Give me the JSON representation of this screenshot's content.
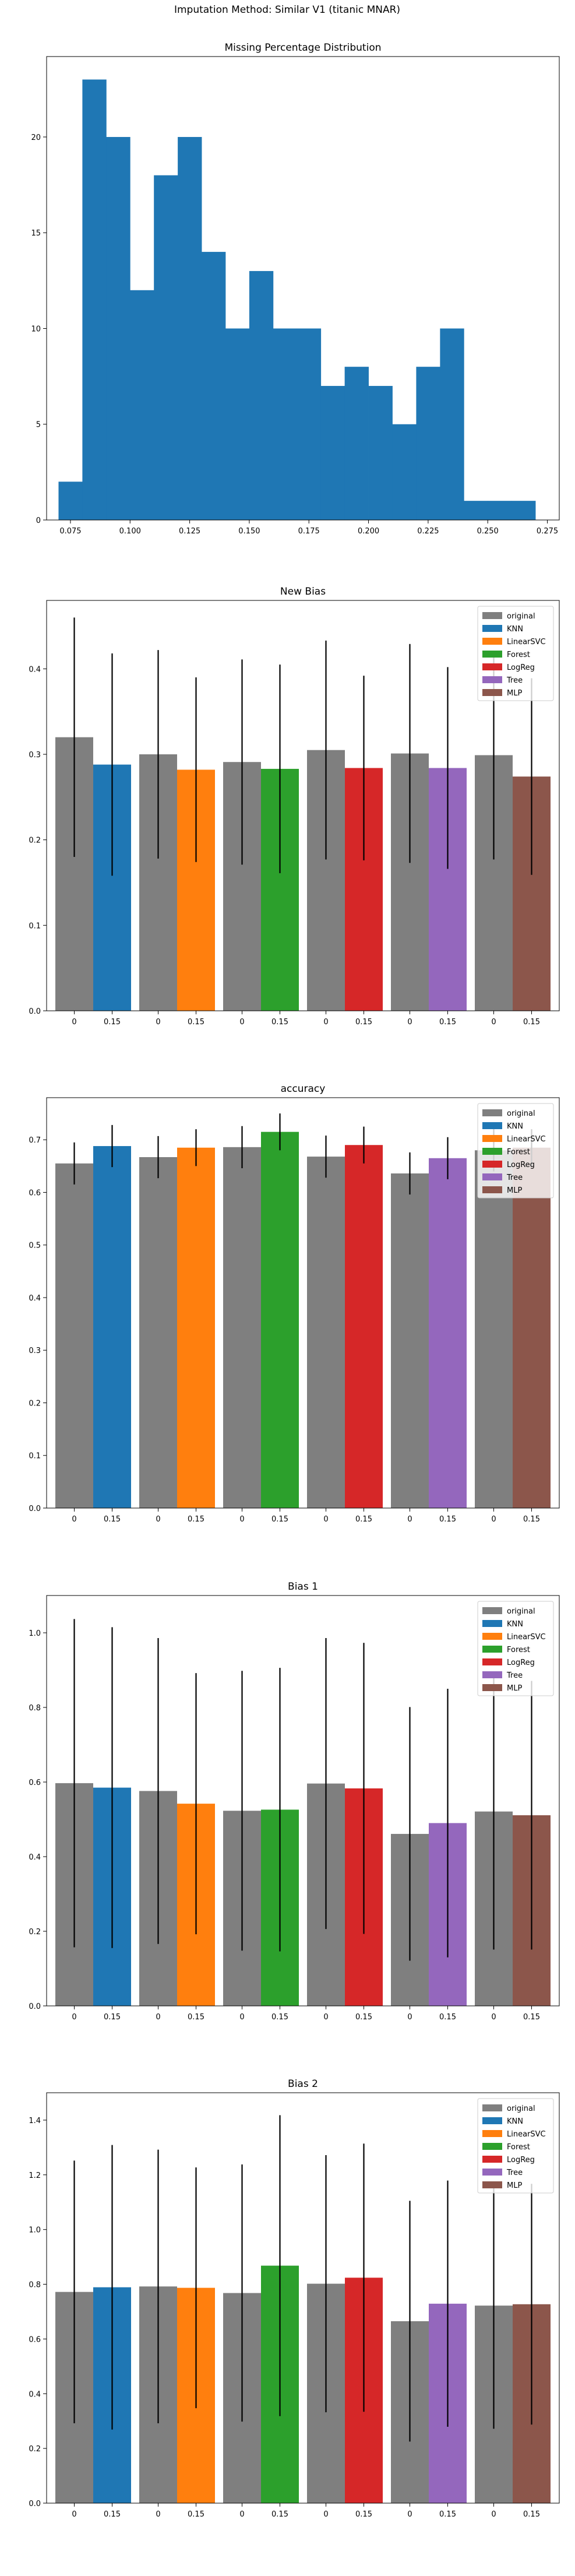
{
  "suptitle": "Imputation Method: Similar V1 (titanic MNAR)",
  "chart_data": [
    {
      "type": "bar",
      "subtype": "histogram",
      "title": "Missing Percentage Distribution",
      "color": "#1f77b4",
      "bin_edges": [
        0.07,
        0.08,
        0.09,
        0.1,
        0.11,
        0.12,
        0.13,
        0.14,
        0.15,
        0.16,
        0.17,
        0.18,
        0.19,
        0.2,
        0.21,
        0.22,
        0.23,
        0.24,
        0.25,
        0.26,
        0.27
      ],
      "values": [
        2,
        23,
        20,
        12,
        18,
        20,
        14,
        10,
        13,
        10,
        10,
        7,
        8,
        7,
        5,
        8,
        10,
        1,
        1,
        1
      ],
      "xlim": [
        0.065,
        0.28
      ],
      "ylim": [
        0,
        24.2
      ],
      "xticks": [
        0.075,
        0.1,
        0.125,
        0.15,
        0.175,
        0.2,
        0.225,
        0.25,
        0.275
      ],
      "xtick_labels": [
        "0.075",
        "0.100",
        "0.125",
        "0.150",
        "0.175",
        "0.200",
        "0.225",
        "0.250",
        "0.275"
      ],
      "yticks": [
        0,
        5,
        10,
        15,
        20
      ],
      "ytick_labels": [
        "0",
        "5",
        "10",
        "15",
        "20"
      ]
    },
    {
      "type": "bar",
      "title": "New Bias",
      "categories": [
        "0",
        "0.15",
        "0",
        "0.15",
        "0",
        "0.15",
        "0",
        "0.15",
        "0",
        "0.15",
        "0",
        "0.15"
      ],
      "ylim": [
        0,
        0.48
      ],
      "yticks": [
        0.0,
        0.1,
        0.2,
        0.3,
        0.4
      ],
      "ytick_labels": [
        "0.0",
        "0.1",
        "0.2",
        "0.3",
        "0.4"
      ],
      "groups": [
        {
          "name": "KNN",
          "original": 0.32,
          "original_err": 0.14,
          "imputed": 0.288,
          "imputed_err": 0.13
        },
        {
          "name": "LinearSVC",
          "original": 0.3,
          "original_err": 0.122,
          "imputed": 0.282,
          "imputed_err": 0.108
        },
        {
          "name": "Forest",
          "original": 0.291,
          "original_err": 0.12,
          "imputed": 0.283,
          "imputed_err": 0.122
        },
        {
          "name": "LogReg",
          "original": 0.305,
          "original_err": 0.128,
          "imputed": 0.284,
          "imputed_err": 0.108
        },
        {
          "name": "Tree",
          "original": 0.301,
          "original_err": 0.128,
          "imputed": 0.284,
          "imputed_err": 0.118
        },
        {
          "name": "MLP",
          "original": 0.299,
          "original_err": 0.122,
          "imputed": 0.274,
          "imputed_err": 0.115
        }
      ],
      "legend": [
        "original",
        "KNN",
        "LinearSVC",
        "Forest",
        "LogReg",
        "Tree",
        "MLP"
      ],
      "legend_position": "top-right"
    },
    {
      "type": "bar",
      "title": "accuracy",
      "categories": [
        "0",
        "0.15",
        "0",
        "0.15",
        "0",
        "0.15",
        "0",
        "0.15",
        "0",
        "0.15",
        "0",
        "0.15"
      ],
      "ylim": [
        0,
        0.78
      ],
      "yticks": [
        0.0,
        0.1,
        0.2,
        0.3,
        0.4,
        0.5,
        0.6,
        0.7
      ],
      "ytick_labels": [
        "0.0",
        "0.1",
        "0.2",
        "0.3",
        "0.4",
        "0.5",
        "0.6",
        "0.7"
      ],
      "groups": [
        {
          "name": "KNN",
          "original": 0.655,
          "original_err": 0.04,
          "imputed": 0.688,
          "imputed_err": 0.04
        },
        {
          "name": "LinearSVC",
          "original": 0.667,
          "original_err": 0.04,
          "imputed": 0.685,
          "imputed_err": 0.035
        },
        {
          "name": "Forest",
          "original": 0.686,
          "original_err": 0.04,
          "imputed": 0.715,
          "imputed_err": 0.035
        },
        {
          "name": "LogReg",
          "original": 0.668,
          "original_err": 0.04,
          "imputed": 0.69,
          "imputed_err": 0.035
        },
        {
          "name": "Tree",
          "original": 0.636,
          "original_err": 0.04,
          "imputed": 0.665,
          "imputed_err": 0.04
        },
        {
          "name": "MLP",
          "original": 0.68,
          "original_err": 0.04,
          "imputed": 0.685,
          "imputed_err": 0.035
        }
      ],
      "legend": [
        "original",
        "KNN",
        "LinearSVC",
        "Forest",
        "LogReg",
        "Tree",
        "MLP"
      ],
      "legend_position": "top-right"
    },
    {
      "type": "bar",
      "title": "Bias 1",
      "categories": [
        "0",
        "0.15",
        "0",
        "0.15",
        "0",
        "0.15",
        "0",
        "0.15",
        "0",
        "0.15",
        "0",
        "0.15"
      ],
      "ylim": [
        0,
        1.1
      ],
      "yticks": [
        0.0,
        0.2,
        0.4,
        0.6,
        0.8,
        1.0
      ],
      "ytick_labels": [
        "0.0",
        "0.2",
        "0.4",
        "0.6",
        "0.8",
        "1.0"
      ],
      "groups": [
        {
          "name": "KNN",
          "original": 0.597,
          "original_err": 0.44,
          "imputed": 0.585,
          "imputed_err": 0.43
        },
        {
          "name": "LinearSVC",
          "original": 0.576,
          "original_err": 0.41,
          "imputed": 0.542,
          "imputed_err": 0.35
        },
        {
          "name": "Forest",
          "original": 0.523,
          "original_err": 0.375,
          "imputed": 0.526,
          "imputed_err": 0.38
        },
        {
          "name": "LogReg",
          "original": 0.596,
          "original_err": 0.39,
          "imputed": 0.583,
          "imputed_err": 0.39
        },
        {
          "name": "Tree",
          "original": 0.461,
          "original_err": 0.34,
          "imputed": 0.49,
          "imputed_err": 0.36
        },
        {
          "name": "MLP",
          "original": 0.521,
          "original_err": 0.37,
          "imputed": 0.511,
          "imputed_err": 0.36
        }
      ],
      "legend": [
        "original",
        "KNN",
        "LinearSVC",
        "Forest",
        "LogReg",
        "Tree",
        "MLP"
      ],
      "legend_position": "top-right"
    },
    {
      "type": "bar",
      "title": "Bias 2",
      "categories": [
        "0",
        "0.15",
        "0",
        "0.15",
        "0",
        "0.15",
        "0",
        "0.15",
        "0",
        "0.15",
        "0",
        "0.15"
      ],
      "ylim": [
        0,
        1.5
      ],
      "yticks": [
        0.0,
        0.2,
        0.4,
        0.6,
        0.8,
        1.0,
        1.2,
        1.4
      ],
      "ytick_labels": [
        "0.0",
        "0.2",
        "0.4",
        "0.6",
        "0.8",
        "1.0",
        "1.2",
        "1.4"
      ],
      "groups": [
        {
          "name": "KNN",
          "original": 0.772,
          "original_err": 0.48,
          "imputed": 0.789,
          "imputed_err": 0.52
        },
        {
          "name": "LinearSVC",
          "original": 0.792,
          "original_err": 0.5,
          "imputed": 0.787,
          "imputed_err": 0.44
        },
        {
          "name": "Forest",
          "original": 0.768,
          "original_err": 0.47,
          "imputed": 0.868,
          "imputed_err": 0.55
        },
        {
          "name": "LogReg",
          "original": 0.802,
          "original_err": 0.47,
          "imputed": 0.824,
          "imputed_err": 0.49
        },
        {
          "name": "Tree",
          "original": 0.665,
          "original_err": 0.44,
          "imputed": 0.729,
          "imputed_err": 0.45
        },
        {
          "name": "MLP",
          "original": 0.722,
          "original_err": 0.45,
          "imputed": 0.727,
          "imputed_err": 0.44
        }
      ],
      "legend": [
        "original",
        "KNN",
        "LinearSVC",
        "Forest",
        "LogReg",
        "Tree",
        "MLP"
      ],
      "legend_position": "top-right"
    }
  ],
  "colors": {
    "original": "#7f7f7f",
    "KNN": "#1f77b4",
    "LinearSVC": "#ff7f0e",
    "Forest": "#2ca02c",
    "LogReg": "#d62728",
    "Tree": "#9467bd",
    "MLP": "#8c564b"
  }
}
